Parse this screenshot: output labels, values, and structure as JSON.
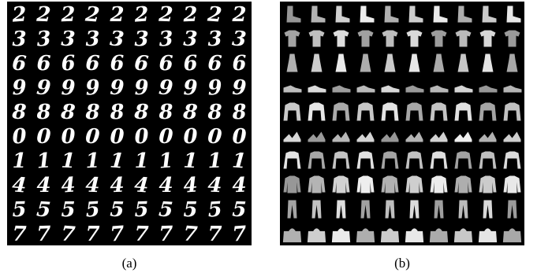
{
  "panel_a": {
    "caption": "(a)",
    "rows": [
      "2",
      "3",
      "6",
      "9",
      "8",
      "0",
      "1",
      "4",
      "5",
      "7"
    ]
  },
  "panel_b": {
    "caption": "(b)"
  }
}
